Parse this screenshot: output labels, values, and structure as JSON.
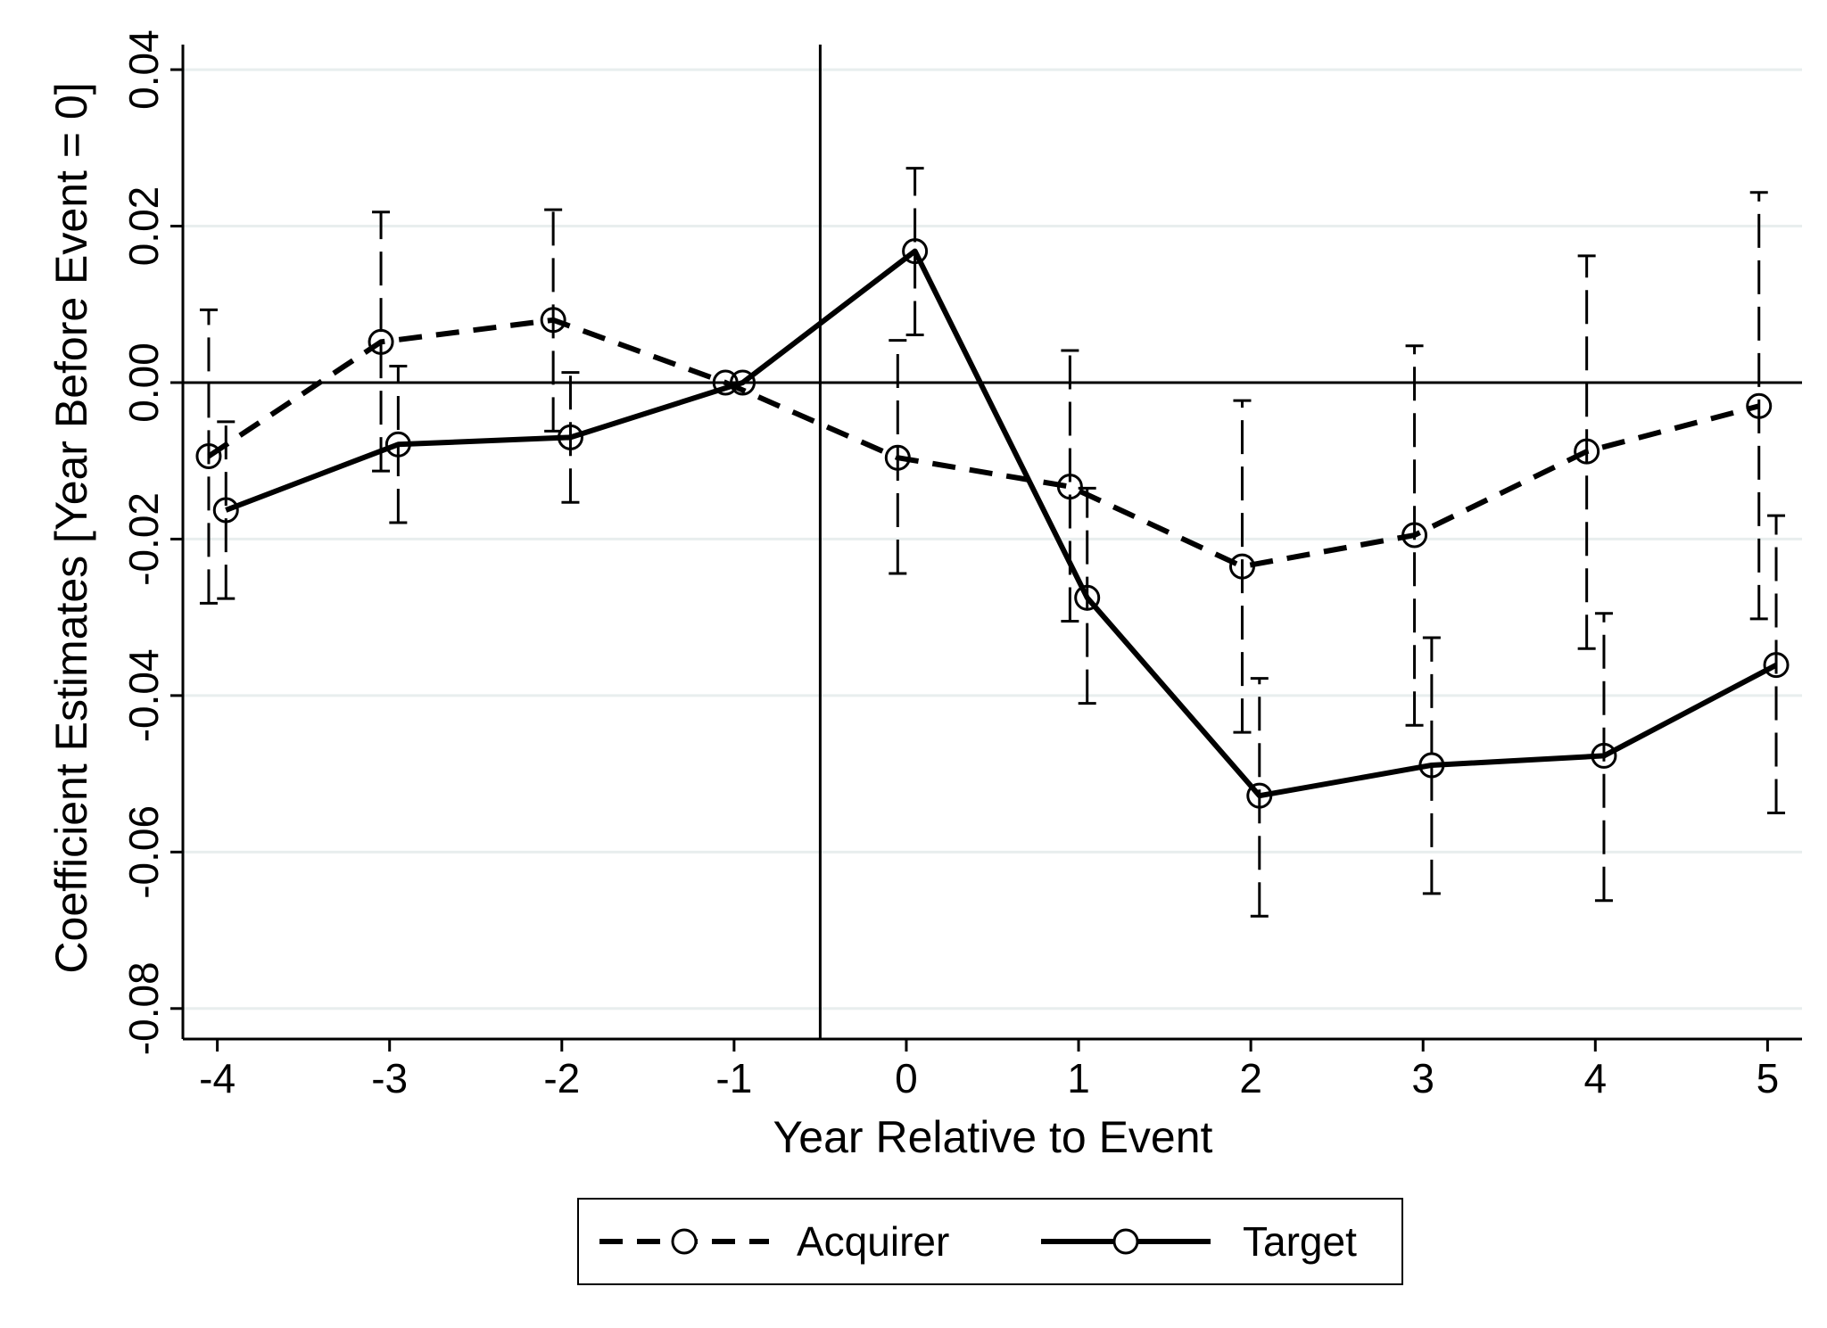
{
  "chart_data": {
    "type": "line",
    "xlabel": "Year Relative to Event",
    "ylabel": "Coefficient Estimates [Year Before Event = 0]",
    "xlim": [
      -4.2,
      5.2
    ],
    "ylim": [
      -0.0839,
      0.0432
    ],
    "x_ticks": [
      -4,
      -3,
      -2,
      -1,
      0,
      1,
      2,
      3,
      4,
      5
    ],
    "x_tick_labels": [
      "-4",
      "-3",
      "-2",
      "-1",
      "0",
      "1",
      "2",
      "3",
      "4",
      "5"
    ],
    "y_ticks": [
      -0.08,
      -0.06,
      -0.04,
      -0.02,
      0.0,
      0.02,
      0.04
    ],
    "y_tick_labels": [
      "-0.08",
      "-0.06",
      "-0.04",
      "-0.02",
      "0.00",
      "0.02",
      "0.04"
    ],
    "grid": true,
    "reference_lines": {
      "horizontal_y": 0.0,
      "vertical_x": -0.5
    },
    "legend_position": "bottom",
    "series": [
      {
        "name": "Acquirer",
        "line_style": "dashed",
        "x": [
          -4,
          -3,
          -2,
          -1,
          0,
          1,
          2,
          3,
          4,
          5
        ],
        "x_plotted": [
          -4.05,
          -3.05,
          -2.05,
          -1.05,
          -0.05,
          0.95,
          1.95,
          2.95,
          3.95,
          4.95
        ],
        "y": [
          -0.0094,
          0.0052,
          0.008,
          0.0,
          -0.0096,
          -0.0133,
          -0.0235,
          -0.0195,
          -0.0088,
          -0.003
        ],
        "ci_low": [
          -0.0282,
          -0.0113,
          -0.0062,
          null,
          -0.0244,
          -0.0305,
          -0.0447,
          -0.0438,
          -0.034,
          -0.0302
        ],
        "ci_high": [
          0.0093,
          0.0218,
          0.0221,
          null,
          0.0054,
          0.0041,
          -0.0023,
          0.0047,
          0.0162,
          0.0243
        ]
      },
      {
        "name": "Target",
        "line_style": "solid",
        "x": [
          -4,
          -3,
          -2,
          -1,
          0,
          1,
          2,
          3,
          4,
          5
        ],
        "x_plotted": [
          -3.95,
          -2.95,
          -1.95,
          -0.95,
          0.05,
          1.05,
          2.05,
          3.05,
          4.05,
          5.05
        ],
        "y": [
          -0.0163,
          -0.0079,
          -0.007,
          0.0,
          0.0168,
          -0.0275,
          -0.0528,
          -0.0489,
          -0.0477,
          -0.0361
        ],
        "ci_low": [
          -0.0276,
          -0.0179,
          -0.0153,
          null,
          0.0061,
          -0.041,
          -0.0682,
          -0.0653,
          -0.0662,
          -0.055
        ],
        "ci_high": [
          -0.005,
          0.0021,
          0.0013,
          null,
          0.0274,
          -0.0135,
          -0.0378,
          -0.0326,
          -0.0295,
          -0.017
        ]
      }
    ]
  },
  "colors": {
    "line": "#000000",
    "grid": "#e8eeee",
    "background": "#ffffff"
  }
}
